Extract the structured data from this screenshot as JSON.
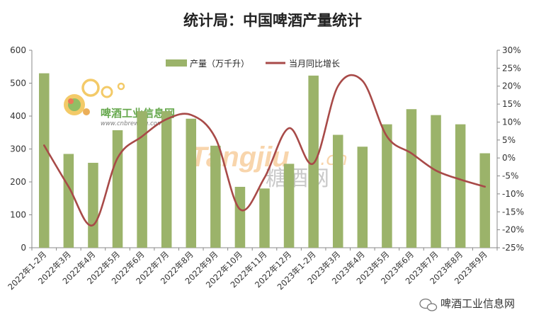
{
  "chart_data": {
    "type": "bar",
    "title": "统计局：中国啤酒产量统计",
    "categories": [
      "2022年1-2月",
      "2022年3月",
      "2022年4月",
      "2022年5月",
      "2022年6月",
      "2022年7月",
      "2022年8月",
      "2022年9月",
      "2022年10月",
      "2022年11月",
      "2022年12月",
      "2023年1-2月",
      "2023年3月",
      "2023年4月",
      "2023年5月",
      "2023年6月",
      "2023年7月",
      "2023年8月",
      "2023年9月"
    ],
    "y_left": {
      "min": 0,
      "max": 600,
      "ticks": [
        "0",
        "100",
        "200",
        "300",
        "400",
        "500",
        "600"
      ]
    },
    "y_right": {
      "min": -25,
      "max": 30,
      "ticks": [
        "-25%",
        "-20%",
        "-15%",
        "-10%",
        "-5%",
        "0%",
        "5%",
        "10%",
        "15%",
        "20%",
        "25%",
        "30%"
      ]
    },
    "series": [
      {
        "name": "产量（万千升）",
        "kind": "bar",
        "axis": "left",
        "color": "#9bb36a",
        "values": [
          530,
          285,
          258,
          357,
          415,
          415,
          392,
          310,
          185,
          180,
          255,
          523,
          343,
          307,
          375,
          421,
          403,
          375,
          287
        ]
      },
      {
        "name": "当月同比增长",
        "kind": "line",
        "axis": "right",
        "color": "#a84a48",
        "values": [
          3.5,
          -8,
          -18.7,
          0,
          6,
          10.8,
          12,
          5.5,
          -14.3,
          -5.5,
          8.3,
          -1.5,
          20,
          21.5,
          6,
          1.3,
          -3.5,
          -6,
          -8
        ]
      }
    ],
    "legend_position": "top",
    "grid": false
  },
  "watermarks": {
    "site_name": "啤酒工业信息网",
    "site_url": "www.cnbrewing.com",
    "tangjiu_latin": "Tangjiu",
    "tangjiu_cn_suffix": ".cn",
    "tangjiu_cn": "糖酒网",
    "footer": "啤酒工业信息网"
  },
  "colors": {
    "bar": "#9bb36a",
    "line": "#a84a48",
    "axis": "#888888"
  }
}
